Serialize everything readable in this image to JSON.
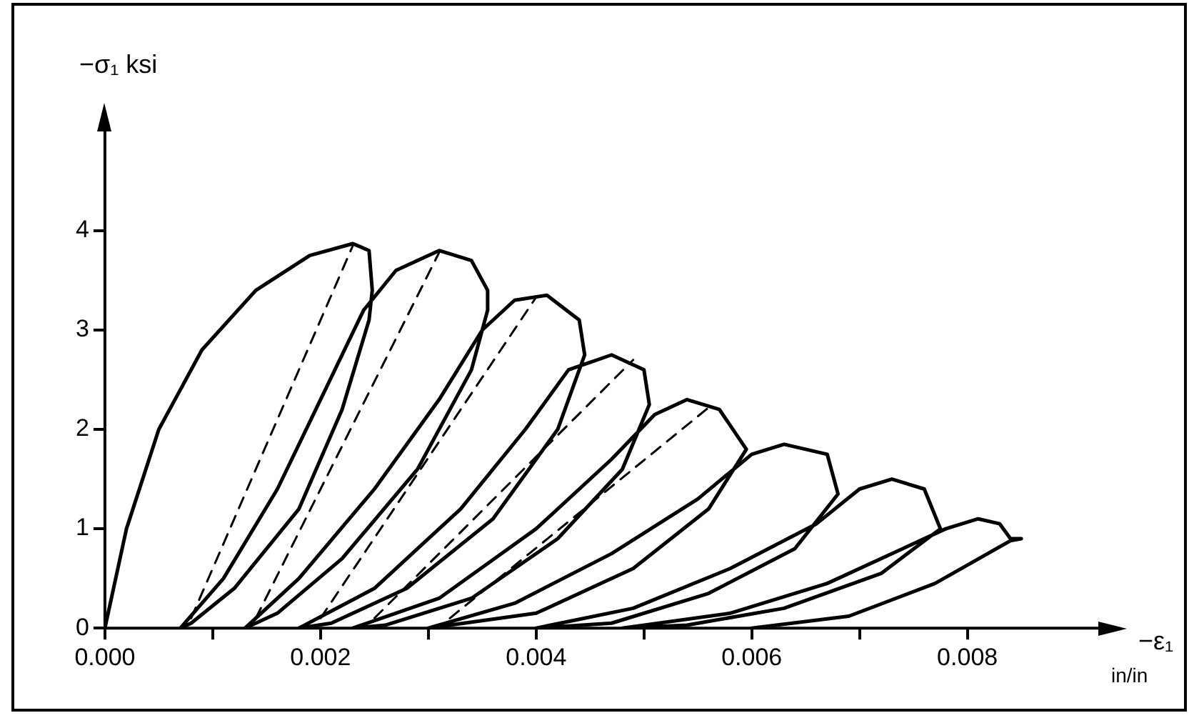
{
  "chart_data": {
    "type": "line",
    "xlabel": "−ε₁",
    "ylabel": "−σ₁ ksi",
    "annotations": [
      "in/in"
    ],
    "xlim": [
      0,
      0.0094
    ],
    "ylim": [
      0,
      5.2
    ],
    "xticks": [
      {
        "value": 0,
        "label": "0.000"
      },
      {
        "value": 0.001,
        "label": null
      },
      {
        "value": 0.002,
        "label": "0.002"
      },
      {
        "value": 0.003,
        "label": null
      },
      {
        "value": 0.004,
        "label": "0.004"
      },
      {
        "value": 0.005,
        "label": null
      },
      {
        "value": 0.006,
        "label": "0.006"
      },
      {
        "value": 0.007,
        "label": null
      },
      {
        "value": 0.008,
        "label": "0.008"
      }
    ],
    "yticks": [
      0,
      1,
      2,
      3,
      4
    ],
    "grid": false,
    "marker": "none",
    "series": [
      {
        "color": "#000000",
        "line_style": "solid",
        "x": [
          0,
          0.0002,
          0.0005,
          0.0009,
          0.0014,
          0.0019,
          0.0023,
          0.00245,
          0.00248,
          0.00245,
          0.0022,
          0.0018,
          0.0012,
          0.0008,
          0.0007,
          0.0011,
          0.0016,
          0.002,
          0.0024,
          0.0027,
          0.0031,
          0.0034,
          0.00355,
          0.00355,
          0.0034,
          0.0029,
          0.0022,
          0.0016,
          0.0013,
          0.0018,
          0.0025,
          0.0031,
          0.0035,
          0.0038,
          0.0041,
          0.0044,
          0.00445,
          0.0042,
          0.0036,
          0.0028,
          0.0021,
          0.0018,
          0.0025,
          0.0033,
          0.0039,
          0.0043,
          0.0047,
          0.005,
          0.00505,
          0.0048,
          0.0042,
          0.0034,
          0.0026,
          0.0023,
          0.0031,
          0.004,
          0.0047,
          0.0051,
          0.0054,
          0.0057,
          0.00595,
          0.0056,
          0.0049,
          0.004,
          0.003,
          0.0038,
          0.0047,
          0.0055,
          0.006,
          0.0063,
          0.0067,
          0.0068,
          0.0064,
          0.0056,
          0.0047,
          0.004,
          0.0049,
          0.0058,
          0.0066,
          0.007,
          0.0073,
          0.0076,
          0.00775,
          0.0072,
          0.0063,
          0.0054,
          0.0048,
          0.0058,
          0.0067,
          0.0074,
          0.0078,
          0.0081,
          0.0083,
          0.0084,
          0.0085,
          0.0084,
          0.0077,
          0.0069,
          0.006
        ],
        "values": [
          0,
          1.0,
          2.0,
          2.8,
          3.4,
          3.75,
          3.87,
          3.8,
          3.4,
          3.1,
          2.2,
          1.2,
          0.4,
          0.05,
          0,
          0.5,
          1.4,
          2.3,
          3.2,
          3.6,
          3.8,
          3.7,
          3.4,
          3.2,
          2.6,
          1.6,
          0.7,
          0.15,
          0,
          0.5,
          1.4,
          2.3,
          3.0,
          3.3,
          3.35,
          3.1,
          2.75,
          2.0,
          1.1,
          0.4,
          0.05,
          0,
          0.4,
          1.2,
          2.0,
          2.6,
          2.75,
          2.6,
          2.25,
          1.6,
          0.9,
          0.3,
          0.03,
          0,
          0.3,
          1.0,
          1.7,
          2.15,
          2.3,
          2.2,
          1.8,
          1.2,
          0.6,
          0.15,
          0,
          0.25,
          0.75,
          1.3,
          1.75,
          1.85,
          1.75,
          1.35,
          0.8,
          0.35,
          0.05,
          0,
          0.2,
          0.6,
          1.05,
          1.4,
          1.5,
          1.4,
          1.0,
          0.55,
          0.2,
          0.03,
          0,
          0.15,
          0.45,
          0.8,
          1.0,
          1.1,
          1.05,
          0.9,
          0.9,
          0.88,
          0.45,
          0.12,
          0
        ]
      },
      {
        "color": "#000000",
        "line_style": "dashed",
        "x": [
          0.0008,
          0.0023,
          null,
          0.0014,
          0.0031,
          null,
          0.002,
          0.004,
          null,
          0.0025,
          0.0049,
          null,
          0.0032,
          0.0056
        ],
        "values": [
          0.1,
          3.85,
          null,
          0.1,
          3.78,
          null,
          0.1,
          3.33,
          null,
          0.1,
          2.7,
          null,
          0.1,
          2.22
        ]
      }
    ]
  }
}
